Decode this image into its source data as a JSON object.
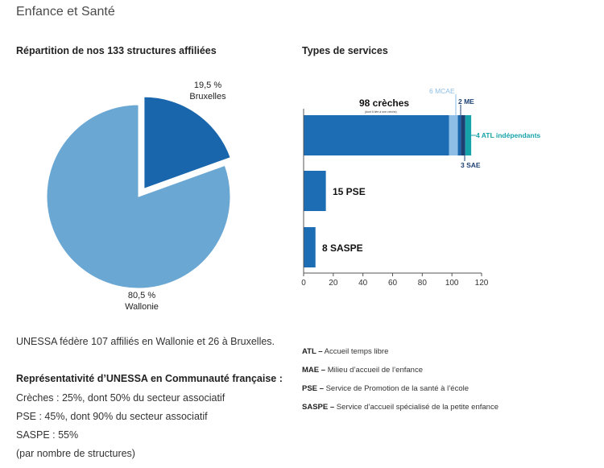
{
  "page": {
    "title": "Enfance et Santé"
  },
  "colors": {
    "dark_blue": "#1a66ad",
    "mid_blue": "#1d6db5",
    "light_blue": "#6aa7d3",
    "mcae_blue": "#8ebde6",
    "teal": "#17a3aa",
    "navy": "#1d3f73",
    "axis": "#555555"
  },
  "left": {
    "title": "Répartition de nos 133 structures affiliées",
    "summary": "UNESSA fédère 107 affiliés en Wallonie et 26 à Bruxelles.",
    "representativity_heading": "Représentativité d’UNESSA en Communauté française :",
    "representativity_lines": [
      "Crèches : 25%, dont 50% du secteur associatif",
      "PSE : 45%, dont 90% du secteur associatif",
      "SASPE : 55%",
      "(par nombre de structures)"
    ]
  },
  "right": {
    "title": "Types de services",
    "legend": [
      {
        "abbr": "ATL –",
        "text": "Accueil temps libre"
      },
      {
        "abbr": "MAE –",
        "text": "Milieu d’accueil de l’enfance"
      },
      {
        "abbr": "PSE –",
        "text": "Service de Promotion de la santé à l’école"
      },
      {
        "abbr": "SASPE –",
        "text": "Service d’accueil spécialisé de la petite enfance"
      }
    ]
  },
  "chart_data": [
    {
      "type": "pie",
      "title": "Répartition de nos 133 structures affiliées",
      "slices": [
        {
          "label": "Bruxelles",
          "display": "19,5 %",
          "value": 19.5,
          "exploded": true
        },
        {
          "label": "Wallonie",
          "display": "80,5 %",
          "value": 80.5,
          "exploded": false
        }
      ]
    },
    {
      "type": "bar",
      "orientation": "horizontal",
      "stacked": true,
      "title": "Types de services",
      "xlim": [
        0,
        120
      ],
      "xticks": [
        0,
        20,
        40,
        60,
        80,
        100,
        120
      ],
      "bars": [
        {
          "label": "98 crèches",
          "sublabel": "(dont 6 liée à une crèche)",
          "segments": [
            {
              "name": "crèches",
              "value": 98,
              "color": "mid_blue"
            },
            {
              "name": "MCAE",
              "value": 6,
              "color": "mcae_blue",
              "label": "6 MCAE"
            },
            {
              "name": "ME",
              "value": 2,
              "color": "dark_blue",
              "label": "2 ME"
            },
            {
              "name": "SAE",
              "value": 3,
              "color": "navy",
              "label": "3 SAE"
            },
            {
              "name": "ATL indépendants",
              "value": 4,
              "color": "teal",
              "label": "4 ATL indépendants"
            }
          ]
        },
        {
          "label": "15 PSE",
          "segments": [
            {
              "name": "PSE",
              "value": 15,
              "color": "mid_blue"
            }
          ]
        },
        {
          "label": "8 SASPE",
          "segments": [
            {
              "name": "SASPE",
              "value": 8,
              "color": "mid_blue"
            }
          ]
        }
      ]
    }
  ]
}
